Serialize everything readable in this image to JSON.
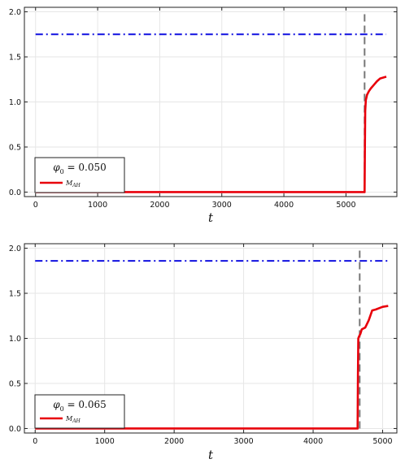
{
  "chart_data": [
    {
      "type": "line",
      "xlabel": "t",
      "ylabel": "",
      "xlim": [
        -180,
        5820
      ],
      "ylim": [
        -0.05,
        2.05
      ],
      "xticks": [
        0,
        1000,
        2000,
        3000,
        4000,
        5000
      ],
      "yticks": [
        0.0,
        0.5,
        1.0,
        1.5,
        2.0
      ],
      "xtick_labels": [
        "0",
        "1000",
        "2000",
        "3000",
        "4000",
        "5000"
      ],
      "ytick_labels": [
        "0.0",
        "0.5",
        "1.0",
        "1.5",
        "2.0"
      ],
      "grid": true,
      "legend": {
        "position": "bottom-left",
        "title_lhs": "φ",
        "title_sub": "0",
        "title_rhs": " = 0.050",
        "entry_main": "M",
        "entry_sub": "AH"
      },
      "series": [
        {
          "name": "M_AH",
          "style": "solid",
          "color": "#e8000b",
          "x": [
            0,
            1000,
            2000,
            3000,
            4000,
            5000,
            5290,
            5300,
            5305,
            5310,
            5320,
            5340,
            5370,
            5400,
            5450,
            5500,
            5550,
            5600,
            5650
          ],
          "y": [
            0.0,
            0.0,
            0.0,
            0.0,
            0.0,
            0.0,
            0.0,
            0.0,
            0.5,
            0.9,
            1.02,
            1.08,
            1.12,
            1.15,
            1.19,
            1.23,
            1.26,
            1.27,
            1.28
          ]
        },
        {
          "name": "",
          "style": "dashdot",
          "color": "#1010e0",
          "x": [
            0,
            5650
          ],
          "y": [
            1.75,
            1.75
          ]
        },
        {
          "name": "",
          "style": "dashed",
          "color": "#777777",
          "x": [
            5300,
            5300
          ],
          "y": [
            0.0,
            2.0
          ]
        }
      ]
    },
    {
      "type": "line",
      "xlabel": "t",
      "ylabel": "",
      "xlim": [
        -155,
        5205
      ],
      "ylim": [
        -0.05,
        2.05
      ],
      "xticks": [
        0,
        1000,
        2000,
        3000,
        4000,
        5000
      ],
      "yticks": [
        0.0,
        0.5,
        1.0,
        1.5,
        2.0
      ],
      "xtick_labels": [
        "0",
        "1000",
        "2000",
        "3000",
        "4000",
        "5000"
      ],
      "ytick_labels": [
        "0.0",
        "0.5",
        "1.0",
        "1.5",
        "2.0"
      ],
      "grid": true,
      "legend": {
        "position": "bottom-left",
        "title_lhs": "φ",
        "title_sub": "0",
        "title_rhs": " = 0.065",
        "entry_main": "M",
        "entry_sub": "AH"
      },
      "series": [
        {
          "name": "M_AH",
          "style": "solid",
          "color": "#e8000b",
          "x": [
            0,
            1000,
            2000,
            3000,
            4000,
            4640,
            4645,
            4650,
            4660,
            4680,
            4700,
            4750,
            4800,
            4850,
            4900,
            5000,
            5080
          ],
          "y": [
            0.0,
            0.0,
            0.0,
            0.0,
            0.0,
            0.0,
            0.6,
            1.0,
            1.02,
            1.05,
            1.1,
            1.12,
            1.2,
            1.31,
            1.32,
            1.35,
            1.36
          ]
        },
        {
          "name": "",
          "style": "dashdot",
          "color": "#1010e0",
          "x": [
            0,
            5080
          ],
          "y": [
            1.86,
            1.86
          ]
        },
        {
          "name": "",
          "style": "dashed",
          "color": "#777777",
          "x": [
            4670,
            4670
          ],
          "y": [
            0.0,
            2.0
          ]
        }
      ]
    }
  ]
}
